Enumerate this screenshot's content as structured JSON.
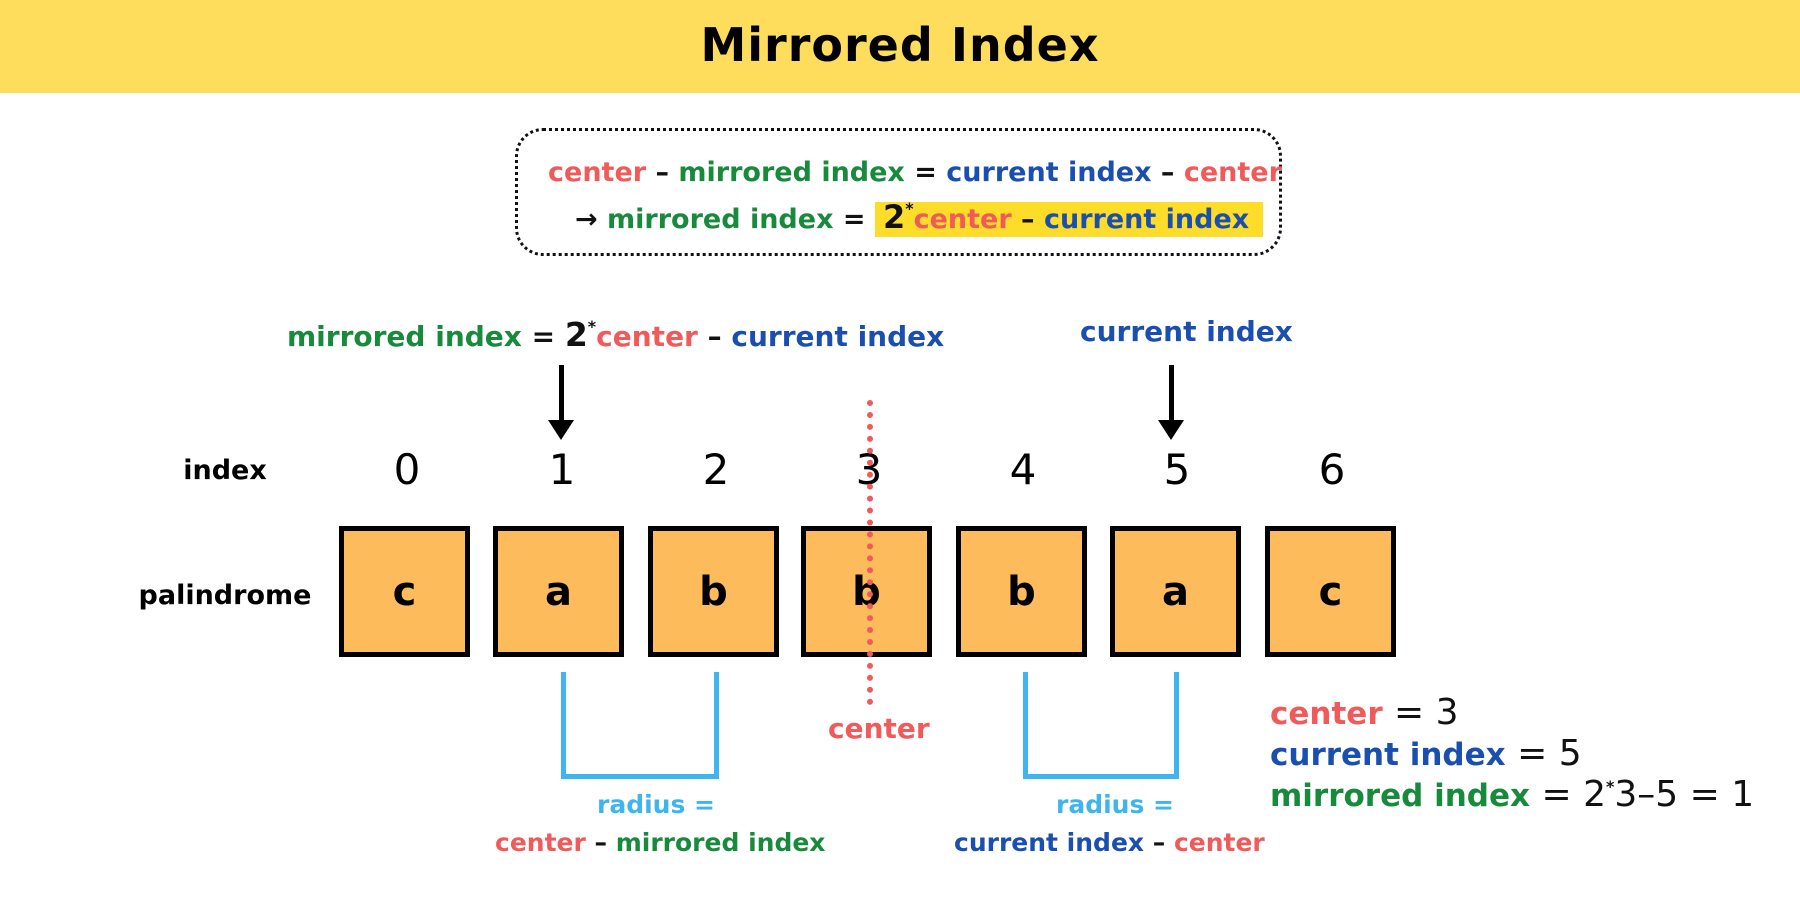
{
  "title": "Mirrored Index",
  "formula_box": {
    "line1": {
      "center_a": "center",
      "minus_a": " – ",
      "mirrored": "mirrored index",
      "equals": " = ",
      "current": "current index",
      "minus_b": " – ",
      "center_b": "center"
    },
    "line2": {
      "arrow": "→ ",
      "mirrored": "mirrored index",
      "equals": " = ",
      "two": "2",
      "star": "*",
      "center": "center",
      "minus": " – ",
      "current": "current index"
    }
  },
  "top_left_label": {
    "mirrored": "mirrored index",
    "equals": " = ",
    "two": "2",
    "star": "*",
    "center": "center",
    "minus": " – ",
    "current": "current index"
  },
  "top_right_label": "current index",
  "index_row_label": "index",
  "palindrome_row_label": "palindrome",
  "indices": [
    "0",
    "1",
    "2",
    "3",
    "4",
    "5",
    "6"
  ],
  "letters": [
    "c",
    "a",
    "b",
    "b",
    "b",
    "a",
    "c"
  ],
  "center_label": "center",
  "left_radius": {
    "line1": "radius =",
    "center": "center",
    "minus": " – ",
    "mirrored": "mirrored index"
  },
  "right_radius": {
    "line1": "radius =",
    "current": "current index",
    "minus": " – ",
    "center": "center"
  },
  "summary": {
    "center_label": "center",
    "center_value": " = 3",
    "current_label": "current index",
    "current_value": " = 5",
    "mirrored_label": "mirrored index",
    "mirrored_a": " = 2",
    "mirrored_star": "*",
    "mirrored_b": "3–5 = 1"
  },
  "colors": {
    "banner": "#fedd5c",
    "center": "#f15a5a",
    "mirrored": "#178a3c",
    "current": "#1a4fb0",
    "radius": "#3eb5f0",
    "cell": "#fdbb5c",
    "highlight": "#fedd2a"
  }
}
